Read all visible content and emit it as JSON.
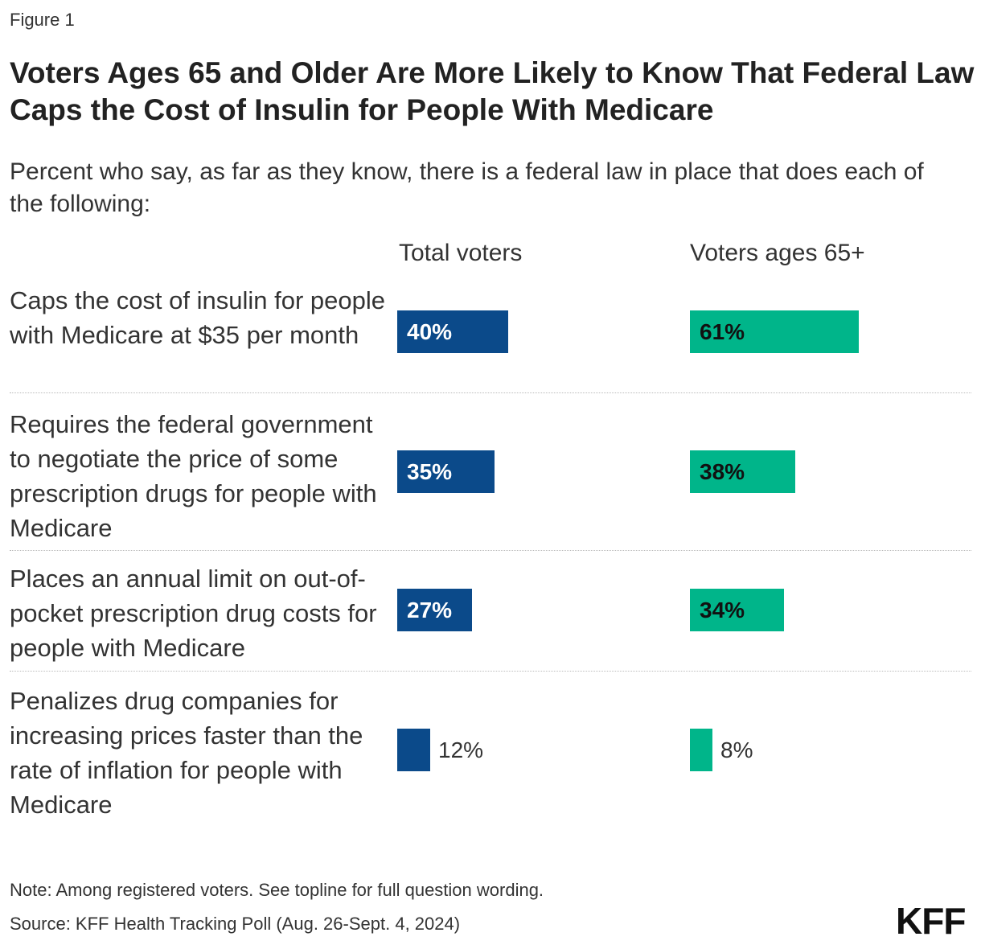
{
  "figure_label": "Figure 1",
  "title": "Voters Ages 65 and Older Are More Likely to Know That Federal Law Caps the Cost of Insulin for People With Medicare",
  "subtitle": "Percent who say, as far as they know, there is a federal law in place that does each of the following:",
  "note": "Note: Among registered voters. See topline for full question wording.",
  "source": "Source: KFF Health Tracking Poll (Aug. 26-Sept. 4, 2024)",
  "logo": "KFF",
  "colors": {
    "total": "#0b4a8a",
    "senior": "#00b58a"
  },
  "chart_data": {
    "type": "bar",
    "orientation": "horizontal",
    "categories": [
      "Caps the cost of insulin for people with Medicare at $35 per month",
      "Requires the federal government to negotiate the price of some prescription drugs for people with Medicare",
      "Places an annual limit on out-of-pocket prescription drug costs for people with Medicare",
      "Penalizes drug companies for increasing prices faster than the rate of inflation for people with Medicare"
    ],
    "series": [
      {
        "name": "Total voters",
        "values": [
          40,
          35,
          27,
          12
        ],
        "labels": [
          "40%",
          "35%",
          "27%",
          "12%"
        ]
      },
      {
        "name": "Voters ages 65+",
        "values": [
          61,
          38,
          34,
          8
        ],
        "labels": [
          "61%",
          "38%",
          "34%",
          "8%"
        ]
      }
    ],
    "unit": "%",
    "xlim": [
      0,
      100
    ],
    "grid": false
  }
}
